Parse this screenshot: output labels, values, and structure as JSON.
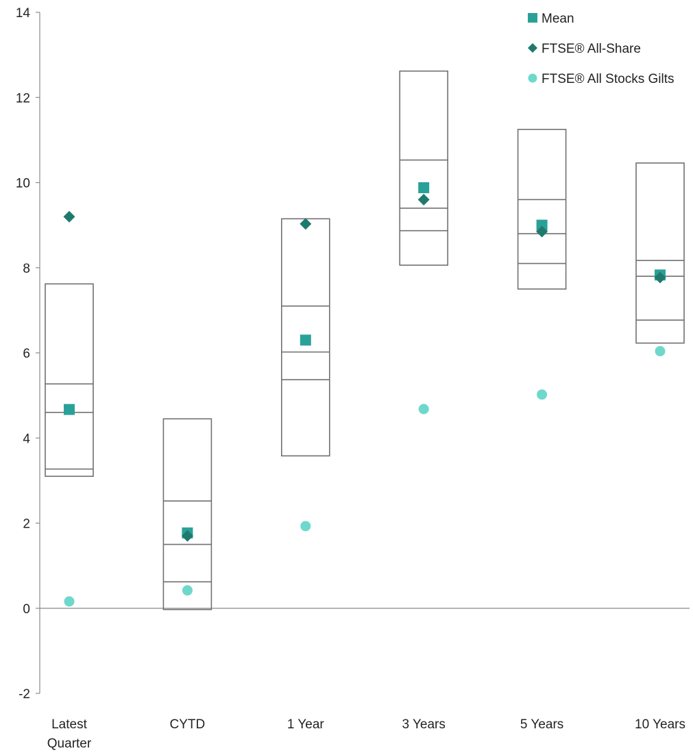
{
  "chart_data": {
    "type": "box-range",
    "ylim": [
      -2,
      14
    ],
    "yticks": [
      -2,
      0,
      2,
      4,
      6,
      8,
      10,
      12,
      14
    ],
    "categories": [
      [
        "Latest",
        "Quarter"
      ],
      [
        "CYTD"
      ],
      [
        "1 Year"
      ],
      [
        "3 Years"
      ],
      [
        "5 Years"
      ],
      [
        "10 Years"
      ]
    ],
    "ranges": [
      {
        "high": 7.62,
        "q3": 5.27,
        "median": 4.6,
        "q1": 3.27,
        "low": 3.1
      },
      {
        "high": 4.45,
        "q3": 2.52,
        "median": 1.5,
        "q1": 0.62,
        "low": -0.03
      },
      {
        "high": 9.15,
        "q3": 7.1,
        "median": 6.02,
        "q1": 5.37,
        "low": 3.58
      },
      {
        "high": 12.62,
        "q3": 10.53,
        "median": 9.4,
        "q1": 8.87,
        "low": 8.06
      },
      {
        "high": 11.25,
        "q3": 9.6,
        "median": 8.8,
        "q1": 8.1,
        "low": 7.5
      },
      {
        "high": 10.46,
        "q3": 8.17,
        "median": 7.8,
        "q1": 6.77,
        "low": 6.23
      }
    ],
    "series": [
      {
        "name": "Mean",
        "marker": "square",
        "color": "#2aa198",
        "values": [
          4.67,
          1.77,
          6.3,
          9.88,
          9.0,
          7.83
        ]
      },
      {
        "name": "FTSE® All-Share",
        "marker": "diamond",
        "color": "#1f7a6e",
        "values": [
          9.2,
          1.7,
          9.03,
          9.6,
          8.85,
          7.77
        ]
      },
      {
        "name": "FTSE® All Stocks Gilts",
        "marker": "circle",
        "color": "#6ed8cc",
        "values": [
          0.16,
          0.42,
          1.93,
          4.68,
          5.02,
          6.04
        ]
      }
    ],
    "legend_position": "top-right",
    "box_color": "#707070",
    "axis_color": "#8a8a8a"
  }
}
